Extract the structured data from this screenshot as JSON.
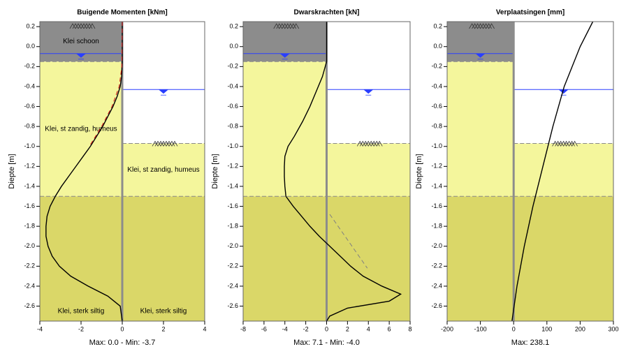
{
  "chart_data": [
    {
      "type": "line",
      "title": "Buigende Momenten [kNm]",
      "xlabel": "Max: 0.0 - Min: -3.7",
      "ylabel": "Diepte [m]",
      "xlim": [
        -4,
        4
      ],
      "xticks": [
        -4,
        -2,
        0,
        2,
        4
      ],
      "ylim": [
        -2.75,
        0.25
      ],
      "yticks": [
        0.2,
        {
          "value": 0,
          "label": "0.0"
        },
        -0.2,
        -0.4,
        -0.6,
        -0.8,
        {
          "value": -1,
          "label": "-1.0"
        },
        -1.2,
        -1.4,
        -1.6,
        -1.8,
        {
          "value": -2,
          "label": "-2.0"
        },
        -2.2,
        -2.4,
        -2.6
      ],
      "soil": {
        "layers": [
          {
            "side": "left",
            "top": 0.25,
            "bottom": -0.15,
            "color": "#8c8c8c",
            "label": "Klei schoon"
          },
          {
            "side": "left",
            "top": -0.15,
            "bottom": -1.5,
            "color": "#f4f69c",
            "label": "Klei, st zandig, humeus"
          },
          {
            "side": "left",
            "top": -1.5,
            "bottom": -2.75,
            "color": "#dad768",
            "label": "Klei, sterk siltig"
          },
          {
            "side": "right",
            "top": -0.97,
            "bottom": -1.5,
            "color": "#f4f69c",
            "label": "Klei, st zandig, humeus"
          },
          {
            "side": "right",
            "top": -1.5,
            "bottom": -2.75,
            "color": "#dad768",
            "label": "Klei, sterk siltig"
          }
        ],
        "water": [
          {
            "side": "left",
            "level": -0.07
          },
          {
            "side": "right",
            "level": -0.43
          }
        ]
      },
      "series": [
        {
          "color": "#000000",
          "dash": false,
          "x": [
            0,
            0,
            0,
            -0.03,
            -0.1,
            -0.25,
            -0.45,
            -0.7,
            -0.95,
            -1.25,
            -1.55,
            -1.9,
            -2.25,
            -2.6,
            -2.95,
            -3.25,
            -3.5,
            -3.65,
            -3.7,
            -3.7,
            -3.6,
            -3.4,
            -3.05,
            -2.5,
            -1.65,
            -0.7,
            -0.1,
            0
          ],
          "y": [
            0.25,
            0,
            -0.15,
            -0.3,
            -0.4,
            -0.5,
            -0.6,
            -0.7,
            -0.8,
            -0.9,
            -1.0,
            -1.1,
            -1.2,
            -1.3,
            -1.4,
            -1.5,
            -1.6,
            -1.7,
            -1.8,
            -1.9,
            -2.0,
            -2.1,
            -2.2,
            -2.3,
            -2.4,
            -2.5,
            -2.6,
            -2.75
          ]
        },
        {
          "color": "#d01010",
          "dash": true,
          "x": [
            0,
            -0.02,
            -0.15,
            -0.5,
            -1.0,
            -1.6
          ],
          "y": [
            0.25,
            -0.2,
            -0.4,
            -0.6,
            -0.8,
            -1.0
          ]
        }
      ]
    },
    {
      "type": "line",
      "title": "Dwarskrachten [kN]",
      "xlabel": "Max: 7.1 - Min: -4.0",
      "ylabel": "Diepte [m]",
      "xlim": [
        -8,
        8
      ],
      "xticks": [
        -8,
        -6,
        -4,
        -2,
        0,
        2,
        4,
        6,
        8
      ],
      "ylim": [
        -2.75,
        0.25
      ],
      "yticks": [
        0.2,
        {
          "value": 0,
          "label": "0.0"
        },
        -0.2,
        -0.4,
        -0.6,
        -0.8,
        {
          "value": -1,
          "label": "-1.0"
        },
        -1.2,
        -1.4,
        -1.6,
        -1.8,
        {
          "value": -2,
          "label": "-2.0"
        },
        -2.2,
        -2.4,
        -2.6
      ],
      "soil": {
        "layers": [
          {
            "side": "left",
            "top": 0.25,
            "bottom": -0.15,
            "color": "#8c8c8c"
          },
          {
            "side": "left",
            "top": -0.15,
            "bottom": -1.5,
            "color": "#f4f69c"
          },
          {
            "side": "left",
            "top": -1.5,
            "bottom": -2.75,
            "color": "#dad768"
          },
          {
            "side": "right",
            "top": -0.97,
            "bottom": -1.5,
            "color": "#f4f69c"
          },
          {
            "side": "right",
            "top": -1.5,
            "bottom": -2.75,
            "color": "#dad768"
          }
        ],
        "water": [
          {
            "side": "left",
            "level": -0.07
          },
          {
            "side": "right",
            "level": -0.43
          }
        ]
      },
      "series": [
        {
          "color": "#000000",
          "dash": false,
          "x": [
            0,
            0,
            -0.4,
            -1.0,
            -1.6,
            -2.3,
            -3.1,
            -3.7,
            -4.0,
            -4.05,
            -4.05,
            -4.0,
            -3.9,
            -3.2,
            -2.4,
            -1.6,
            -0.7,
            0.3,
            1.3,
            2.3,
            3.5,
            5.3,
            7.1,
            6.0,
            2.0,
            0.3,
            0
          ],
          "y": [
            0.25,
            -0.15,
            -0.3,
            -0.45,
            -0.6,
            -0.75,
            -0.9,
            -1.0,
            -1.1,
            -1.2,
            -1.3,
            -1.4,
            -1.5,
            -1.6,
            -1.7,
            -1.8,
            -1.9,
            -2.0,
            -2.1,
            -2.2,
            -2.3,
            -2.4,
            -2.48,
            -2.55,
            -2.62,
            -2.7,
            -2.75
          ]
        },
        {
          "color": "#808080",
          "dash": true,
          "x": [
            0.3,
            3.9
          ],
          "y": [
            -1.68,
            -2.22
          ]
        }
      ]
    },
    {
      "type": "line",
      "title": "Verplaatsingen [mm]",
      "xlabel": "Max: 238.1",
      "ylabel": "Diepte [m]",
      "xlim": [
        -200,
        300
      ],
      "xticks": [
        -200,
        -100,
        0,
        100,
        200,
        300
      ],
      "ylim": [
        -2.75,
        0.25
      ],
      "yticks": [
        0.2,
        {
          "value": 0,
          "label": "0.0"
        },
        -0.2,
        -0.4,
        -0.6,
        -0.8,
        {
          "value": -1,
          "label": "-1.0"
        },
        -1.2,
        -1.4,
        -1.6,
        -1.8,
        {
          "value": -2,
          "label": "-2.0"
        },
        -2.2,
        -2.4,
        -2.6
      ],
      "soil": {
        "layers": [
          {
            "side": "left",
            "top": 0.25,
            "bottom": -0.15,
            "color": "#8c8c8c"
          },
          {
            "side": "left",
            "top": -0.15,
            "bottom": -1.5,
            "color": "#f4f69c"
          },
          {
            "side": "left",
            "top": -1.5,
            "bottom": -2.75,
            "color": "#dad768"
          },
          {
            "side": "right",
            "top": -0.97,
            "bottom": -1.5,
            "color": "#f4f69c"
          },
          {
            "side": "right",
            "top": -1.5,
            "bottom": -2.75,
            "color": "#dad768"
          }
        ],
        "water": [
          {
            "side": "left",
            "level": -0.07
          },
          {
            "side": "right",
            "level": -0.43
          }
        ]
      },
      "series": [
        {
          "color": "#000000",
          "dash": false,
          "x": [
            238.1,
            200,
            152,
            118,
            88,
            58,
            32,
            10,
            -5
          ],
          "y": [
            0.25,
            0,
            -0.4,
            -0.8,
            -1.2,
            -1.6,
            -2.0,
            -2.4,
            -2.75
          ]
        }
      ]
    }
  ]
}
